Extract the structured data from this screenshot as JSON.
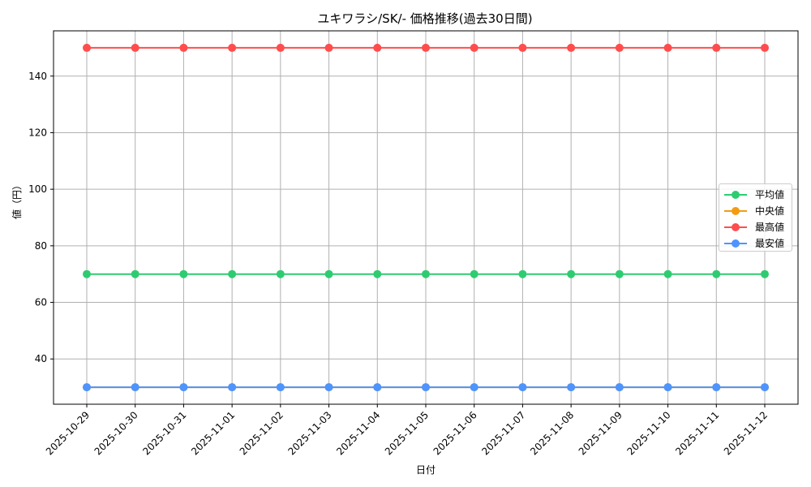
{
  "chart_data": {
    "type": "line",
    "title": "ユキワラシ/SK/- 価格推移(過去30日間)",
    "xlabel": "日付",
    "ylabel": "値（円）",
    "x": [
      "2025-10-29",
      "2025-10-30",
      "2025-10-31",
      "2025-11-01",
      "2025-11-02",
      "2025-11-03",
      "2025-11-04",
      "2025-11-05",
      "2025-11-06",
      "2025-11-07",
      "2025-11-08",
      "2025-11-09",
      "2025-11-10",
      "2025-11-11",
      "2025-11-12"
    ],
    "yticks": [
      40,
      60,
      80,
      100,
      120,
      140
    ],
    "ylim": [
      24,
      156
    ],
    "grid": true,
    "legend_position": "center right",
    "series": [
      {
        "name": "平均値",
        "color": "#2ecc71",
        "values": [
          70,
          70,
          70,
          70,
          70,
          70,
          70,
          70,
          70,
          70,
          70,
          70,
          70,
          70,
          70
        ]
      },
      {
        "name": "中央値",
        "color": "#f39c12",
        "values": [
          30,
          30,
          30,
          30,
          30,
          30,
          30,
          30,
          30,
          30,
          30,
          30,
          30,
          30,
          30
        ]
      },
      {
        "name": "最高値",
        "color": "#ff4d4d",
        "values": [
          150,
          150,
          150,
          150,
          150,
          150,
          150,
          150,
          150,
          150,
          150,
          150,
          150,
          150,
          150
        ]
      },
      {
        "name": "最安値",
        "color": "#4d94ff",
        "values": [
          30,
          30,
          30,
          30,
          30,
          30,
          30,
          30,
          30,
          30,
          30,
          30,
          30,
          30,
          30
        ]
      }
    ]
  }
}
